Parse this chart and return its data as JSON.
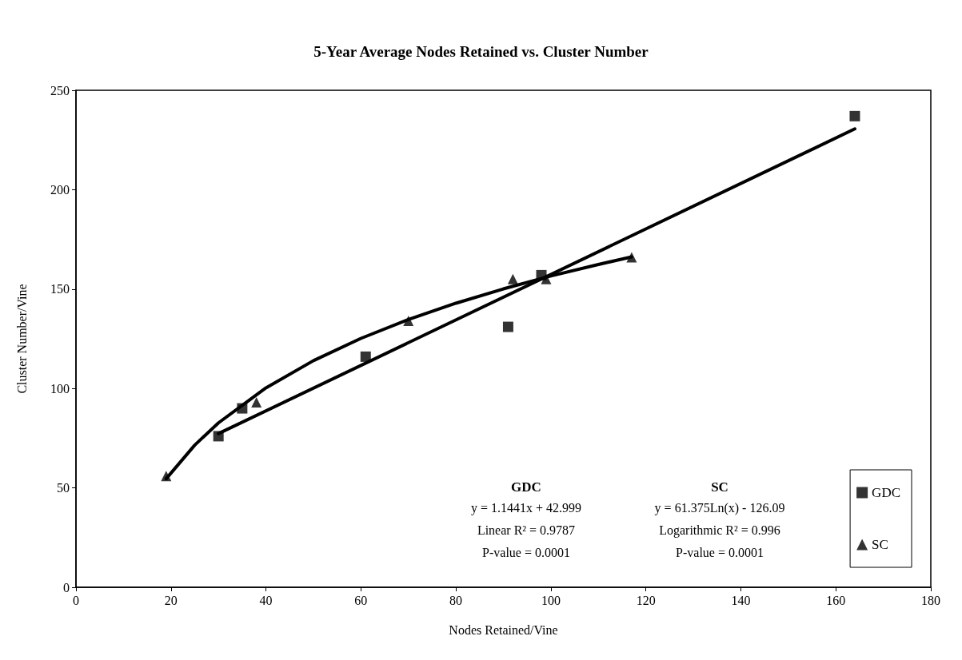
{
  "chart_data": {
    "type": "scatter",
    "title": "5-Year Average Nodes Retained vs. Cluster Number",
    "xlabel": "Nodes Retained/Vine",
    "ylabel": "Cluster Number/Vine",
    "series": [
      {
        "name": "GDC",
        "color": "#000000",
        "marker": "square",
        "x": [
          30,
          35,
          61,
          91,
          98,
          164
        ],
        "values": [
          76,
          90,
          116,
          131,
          157,
          237
        ]
      },
      {
        "name": "SC",
        "color": "#000000",
        "marker": "triangle",
        "x": [
          19,
          38,
          70,
          92,
          99,
          117
        ],
        "values": [
          56,
          93,
          134,
          155,
          155,
          166
        ]
      },
      {
        "type": "line",
        "color": "#000000",
        "marker": "none",
        "x": [
          30,
          164
        ],
        "values": [
          77.3,
          230.6
        ]
      },
      {
        "type": "line",
        "color": "#000000",
        "marker": "none",
        "x": [
          19,
          25,
          30,
          40,
          50,
          60,
          70,
          80,
          90,
          100,
          110,
          117
        ],
        "values": [
          54.6,
          71.5,
          82.7,
          100.3,
          114.0,
          125.2,
          134.7,
          142.9,
          150.1,
          156.6,
          162.4,
          166.2
        ]
      }
    ],
    "xlim": [
      0,
      180
    ],
    "xticks": [
      0,
      20,
      40,
      60,
      80,
      100,
      120,
      140,
      160,
      180
    ],
    "ylim": [
      0,
      250
    ],
    "yticks": [
      0,
      50,
      100,
      150,
      200,
      250
    ],
    "grid": false,
    "legend": "bottom right",
    "line_style": "solid",
    "annotations": [
      "GDC\ny = 1.1441x + 42.999\nLinear R² = 0.9787\nP-value = 0.0001",
      "SC\ny = 61.375Ln(x) - 126.09\nLogarithmic R² = 0.996\nP-value = 0.0001"
    ]
  }
}
